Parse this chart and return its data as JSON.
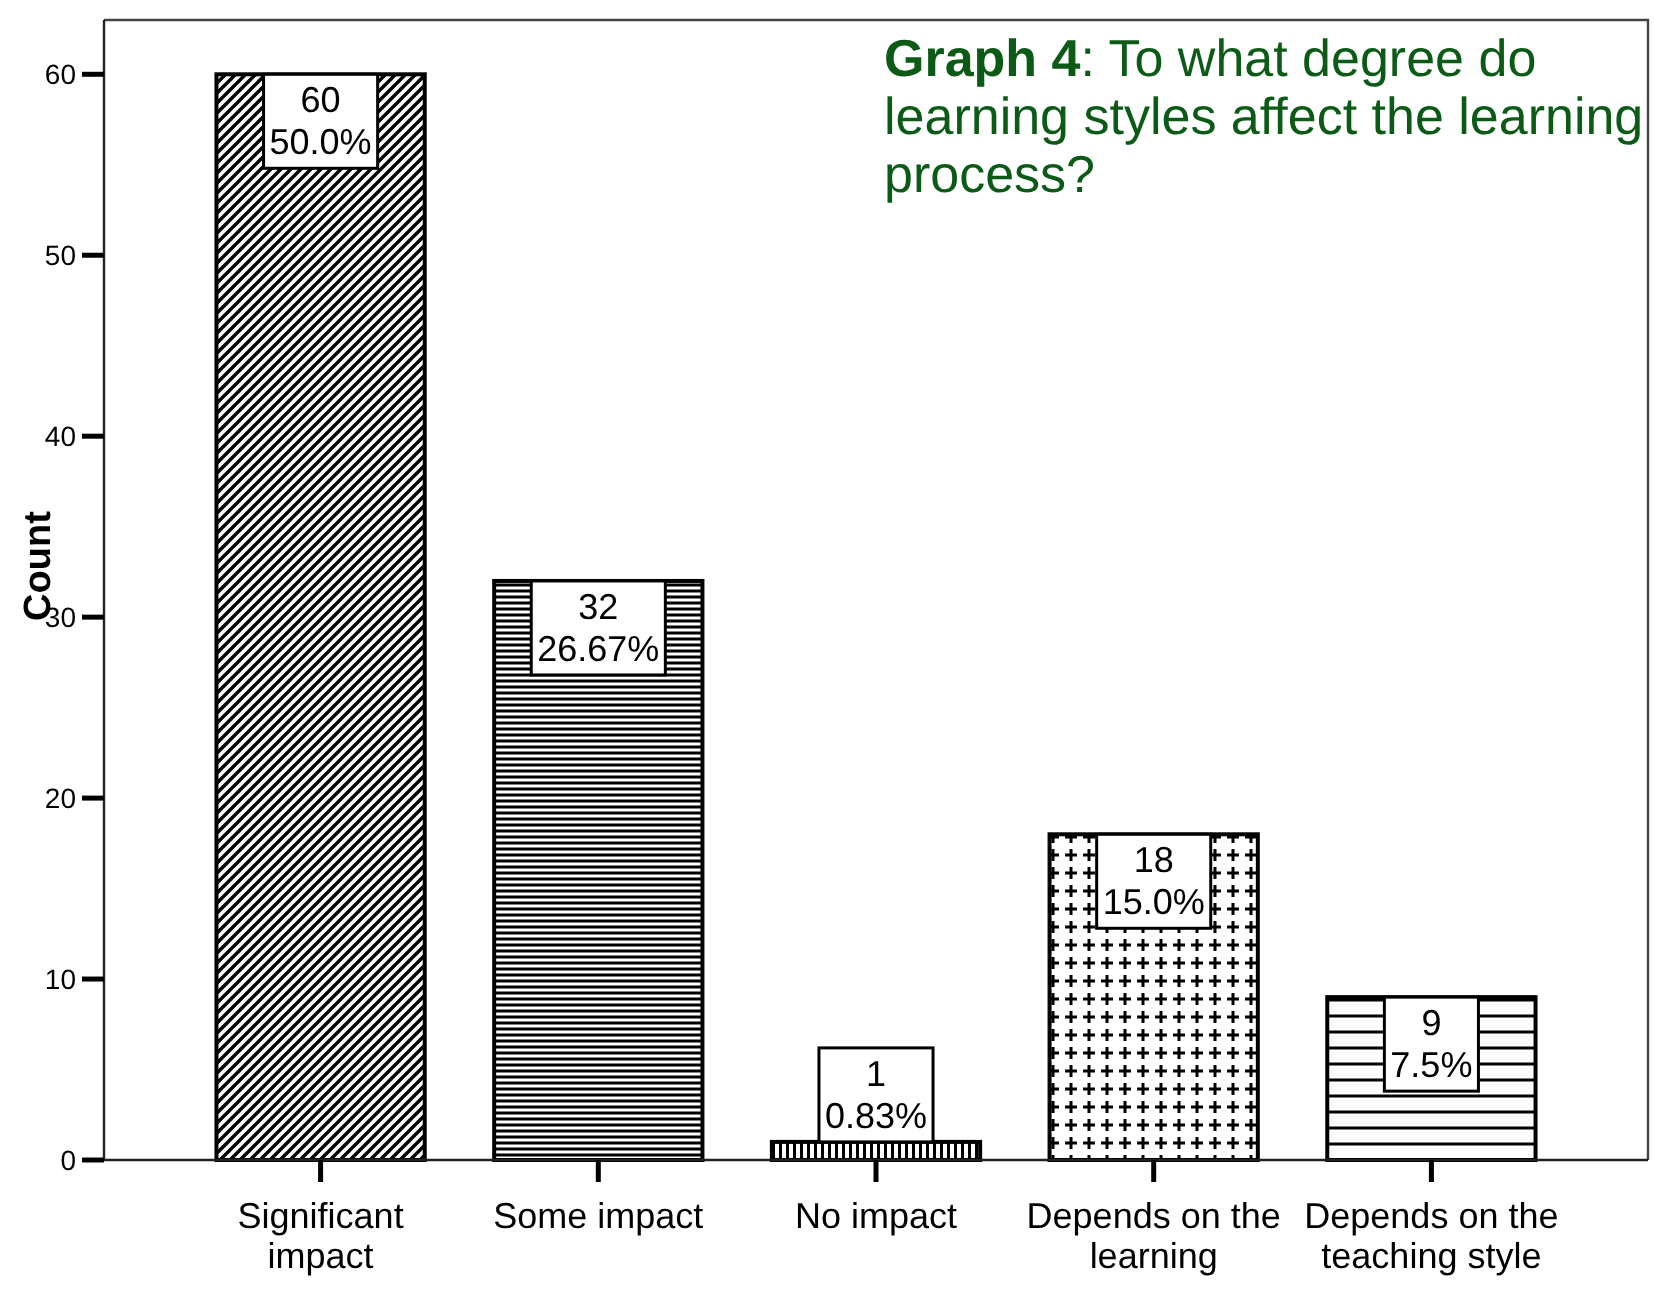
{
  "chart_data": {
    "type": "bar",
    "title": "Graph 4: To what degree do learning styles affect the learning process?",
    "ylabel": "Count",
    "categories": [
      "Significant impact",
      "Some impact",
      "No impact",
      "Depends on the learning",
      "Depends on the teaching style"
    ],
    "values": [
      60,
      32,
      1,
      18,
      9
    ],
    "color": "#000000",
    "value_labels": [
      "60\n50.0%",
      "32\n26.67%",
      "1\n0.83%",
      "18\n15.0%",
      "9\n7.5%"
    ],
    "ylim": [
      0,
      63
    ],
    "yticks": [
      0,
      10,
      20,
      30,
      40,
      50,
      60
    ]
  }
}
